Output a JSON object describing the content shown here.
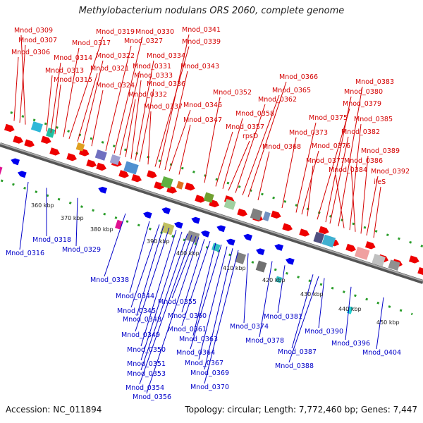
{
  "title": "Methylobacterium nodulans ORS 2060, complete genome",
  "footer": {
    "accession": "Accession: NC_011894",
    "info": "Topology: circular; Length: 7,772,460 bp; Genes: 7,447"
  },
  "colors": {
    "forward_label": "#d40000",
    "reverse_label": "#0000c8",
    "forward_arrow": "#ee0000",
    "reverse_arrow": "#0000ee"
  },
  "scale_ticks": [
    "360 kbp",
    "370 kbp",
    "380 kbp",
    "390 kbp",
    "400 kbp",
    "410 kbp",
    "420 kbp",
    "430 kbp",
    "440 kbp",
    "450 kbp"
  ],
  "forward_genes": [
    "Mnod_0306",
    "Mnod_0307",
    "Mnod_0309",
    "Mnod_0313",
    "Mnod_0314",
    "Mnod_0315",
    "Mnod_0317",
    "Mnod_0319",
    "Mnod_0321",
    "Mnod_0322",
    "Mnod_0324",
    "Mnod_0327",
    "Mnod_0330",
    "Mnod_0331",
    "Mnod_0332",
    "Mnod_0333",
    "Mnod_0334",
    "Mnod_0336",
    "Mnod_0337",
    "Mnod_0339",
    "Mnod_0341",
    "Mnod_0343",
    "Mnod_0346",
    "Mnod_0347",
    "Mnod_0352",
    "Mnod_0357",
    "Mnod_0358",
    "rpsD",
    "Mnod_0362",
    "Mnod_0365",
    "Mnod_0366",
    "Mnod_0368",
    "Mnod_0373",
    "Mnod_0375",
    "Mnod_0376",
    "Mnod_0377",
    "Mnod_0379",
    "Mnod_0380",
    "Mnod_0382",
    "Mnod_0383",
    "Mnod_0384",
    "Mnod_0385",
    "Mnod_0386",
    "Mnod_0389",
    "Mnod_0392",
    "ileS"
  ],
  "reverse_genes": [
    "Mnod_0316",
    "Mnod_0318",
    "Mnod_0329",
    "Mnod_0338",
    "Mnod_0344",
    "Mnod_0345",
    "Mnod_0348",
    "Mnod_0349",
    "Mnod_0350",
    "Mnod_0351",
    "Mnod_0353",
    "Mnod_0354",
    "Mnod_0355",
    "Mnod_0356",
    "Mnod_0360",
    "Mnod_0361",
    "Mnod_0363",
    "Mnod_0364",
    "Mnod_0367",
    "Mnod_0369",
    "Mnod_0370",
    "Mnod_0374",
    "Mnod_0378",
    "Mnod_0381",
    "Mnod_0387",
    "Mnod_0388",
    "Mnod_0390",
    "Mnod_0396",
    "Mnod_0404"
  ]
}
